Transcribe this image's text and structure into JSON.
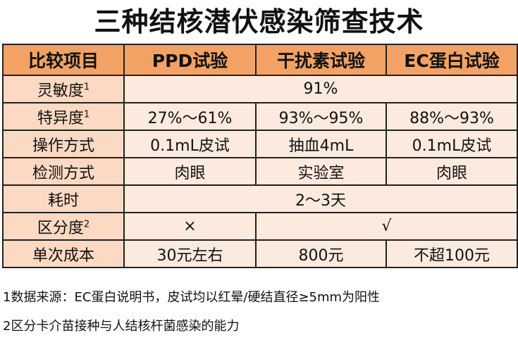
{
  "title": "三种结核潜伏感染筛查技术",
  "colors": {
    "header_bg": "#f3a265",
    "label_bg": "#fbd9c2",
    "cell_bg": "#fdeade",
    "border": "#222222"
  },
  "table": {
    "headers": [
      "比较项目",
      "PPD试验",
      "干扰素试验",
      "EC蛋白试验"
    ],
    "rows": {
      "sensitivity": {
        "label": "灵敏度",
        "sup": "1",
        "merged": "91%"
      },
      "specificity": {
        "label": "特异度",
        "sup": "1",
        "cells": [
          "27%～61%",
          "93%～95%",
          "88%～93%"
        ]
      },
      "method": {
        "label": "操作方式",
        "cells": [
          "0.1mL皮试",
          "抽血4mL",
          "0.1mL皮试"
        ]
      },
      "detection": {
        "label": "检测方式",
        "cells": [
          "肉眼",
          "实验室",
          "肉眼"
        ]
      },
      "time": {
        "label": "耗时",
        "merged": "2～3天"
      },
      "discrimination": {
        "label": "区分度",
        "sup": "2",
        "cells": [
          "×",
          "√"
        ]
      },
      "cost": {
        "label": "单次成本",
        "cells": [
          "30元左右",
          "800元",
          "不超100元"
        ]
      }
    }
  },
  "notes": [
    "1数据来源：EC蛋白说明书，皮试均以红晕/硬结直径≥5mm为阳性",
    "2区分卡介苗接种与人结核杆菌感染的能力"
  ]
}
